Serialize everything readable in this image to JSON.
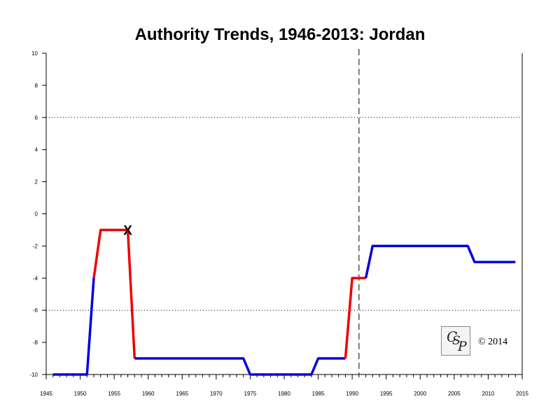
{
  "chart_data": {
    "type": "line",
    "title": "Authority Trends, 1946-2013: Jordan",
    "xlabel": "",
    "ylabel": "",
    "xlim": [
      1945,
      2015
    ],
    "ylim": [
      -10,
      10
    ],
    "x_ticks": [
      1945,
      1950,
      1955,
      1960,
      1965,
      1970,
      1975,
      1980,
      1985,
      1990,
      1995,
      2000,
      2005,
      2010,
      2015
    ],
    "y_ticks": [
      -10,
      -8,
      -6,
      -4,
      -2,
      0,
      2,
      4,
      6,
      8,
      10
    ],
    "grid": false,
    "reference_lines": {
      "horizontal_dotted_y": [
        6,
        -6
      ],
      "vertical_dashed_x": [
        1991
      ]
    },
    "series": [
      {
        "color": "#0000dd",
        "points": [
          [
            1946,
            -10
          ],
          [
            1951,
            -10
          ],
          [
            1952,
            -4
          ]
        ]
      },
      {
        "color": "#ee0000",
        "points": [
          [
            1952,
            -4
          ],
          [
            1953,
            -1
          ],
          [
            1957,
            -1
          ],
          [
            1958,
            -9
          ]
        ]
      },
      {
        "color": "#0000dd",
        "points": [
          [
            1958,
            -9
          ],
          [
            1974,
            -9
          ],
          [
            1975,
            -10
          ],
          [
            1984,
            -10
          ],
          [
            1985,
            -9
          ],
          [
            1989,
            -9
          ]
        ]
      },
      {
        "color": "#ee0000",
        "points": [
          [
            1989,
            -9
          ],
          [
            1990,
            -4
          ],
          [
            1992,
            -4
          ]
        ]
      },
      {
        "color": "#0000dd",
        "points": [
          [
            1992,
            -4
          ],
          [
            1993,
            -2
          ],
          [
            2007,
            -2
          ],
          [
            2008,
            -3
          ],
          [
            2014,
            -3
          ]
        ]
      }
    ],
    "markers": [
      {
        "symbol": "X",
        "x": 1957,
        "y": -1
      }
    ]
  },
  "logo": {
    "letters": [
      "C",
      "S",
      "P"
    ]
  },
  "copyright": "© 2014"
}
